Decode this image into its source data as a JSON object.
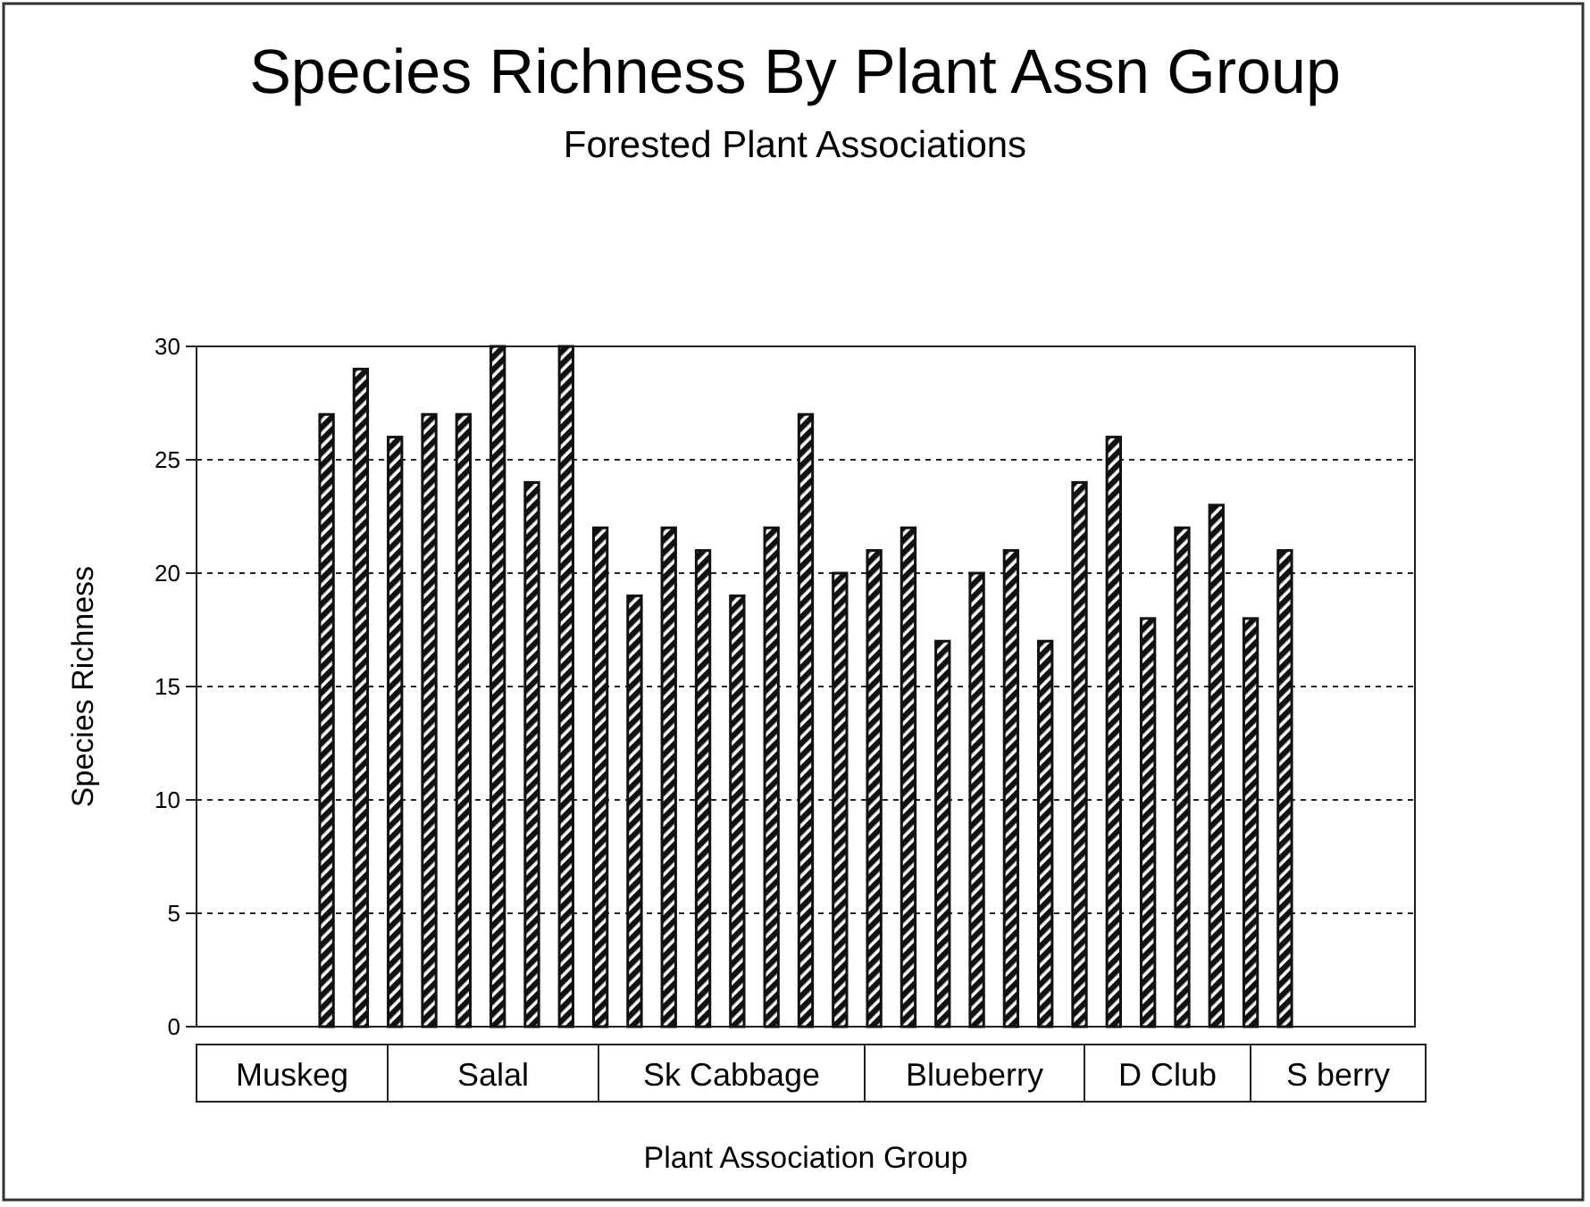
{
  "chart_data": {
    "type": "bar",
    "title": "Species Richness By Plant Assn Group",
    "subtitle": "Forested Plant Associations",
    "xlabel": "Plant Association Group",
    "ylabel": "Species Richness",
    "categories": [
      null,
      null,
      null,
      null,
      null,
      null,
      null,
      null,
      null,
      null,
      null,
      null,
      null,
      null,
      null,
      null,
      null,
      null,
      null,
      null,
      null,
      null,
      null,
      null,
      null,
      null,
      null,
      null,
      null,
      null,
      null,
      null,
      null,
      null,
      null
    ],
    "values": [
      null,
      null,
      null,
      27,
      29,
      26,
      27,
      27,
      30,
      24,
      30,
      22,
      19,
      22,
      21,
      19,
      22,
      27,
      20,
      21,
      22,
      17,
      20,
      21,
      17,
      24,
      26,
      18,
      22,
      23,
      18,
      21,
      null,
      null,
      null
    ],
    "color": "#111111",
    "ylim": [
      0,
      30
    ],
    "yticks": [
      0,
      5,
      10,
      15,
      20,
      25,
      30
    ],
    "grid": "y",
    "annotations": [
      "Muskeg",
      "Salal",
      "Sk Cabbage",
      "Blueberry",
      "D Club",
      "S berry"
    ]
  }
}
